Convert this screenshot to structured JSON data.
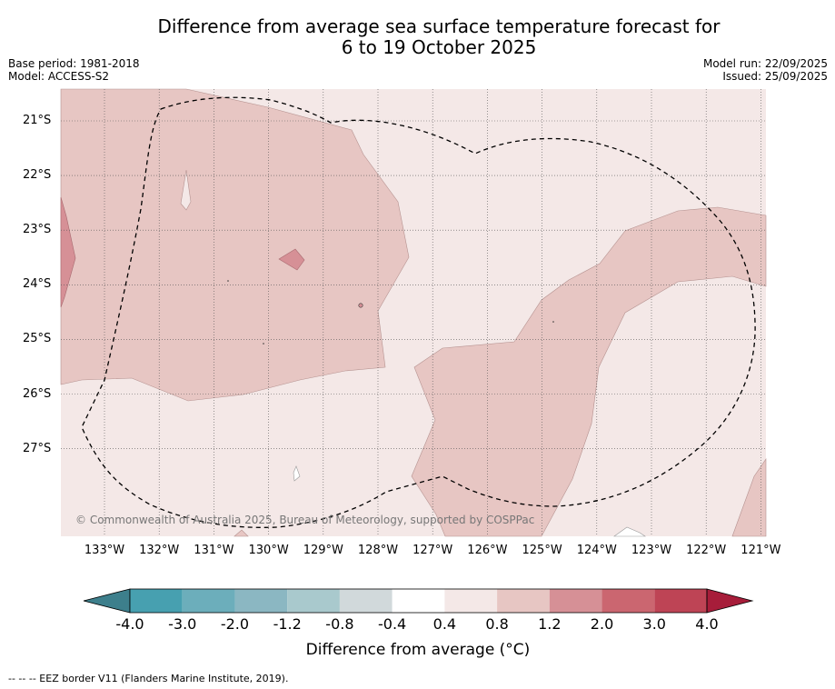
{
  "title": {
    "line1": "Difference from average sea surface temperature forecast for",
    "line2": "6 to 19 October 2025"
  },
  "meta": {
    "base_period": "Base period: 1981-2018",
    "model": "Model: ACCESS-S2",
    "model_run": "Model run: 22/09/2025",
    "issued": "Issued: 25/09/2025"
  },
  "map": {
    "lat_labels": [
      "21°S",
      "22°S",
      "23°S",
      "24°S",
      "25°S",
      "26°S",
      "27°S"
    ],
    "lon_labels": [
      "133°W",
      "132°W",
      "131°W",
      "130°W",
      "129°W",
      "128°W",
      "127°W",
      "126°W",
      "125°W",
      "124°W",
      "123°W",
      "122°W",
      "121°W"
    ],
    "copyright": "© Commonwealth of Australia 2025, Bureau of Meteorology, supported by COSPPac"
  },
  "colorbar": {
    "tick_labels": [
      "-4.0",
      "-3.0",
      "-2.0",
      "-1.2",
      "-0.8",
      "-0.4",
      "0.4",
      "0.8",
      "1.2",
      "2.0",
      "3.0",
      "4.0"
    ],
    "colors": [
      "#3d7f8c",
      "#47a0b0",
      "#6caebb",
      "#8bb7c2",
      "#a9c9cd",
      "#d1d9db",
      "#ffffff",
      "#f4e8e7",
      "#e7c6c3",
      "#d69096",
      "#cb6670",
      "#be4455",
      "#a71d3a"
    ],
    "label": "Difference from average (°C)"
  },
  "footnote": "--  --  -- EEZ border V11 (Flanders Marine Institute, 2019)."
}
